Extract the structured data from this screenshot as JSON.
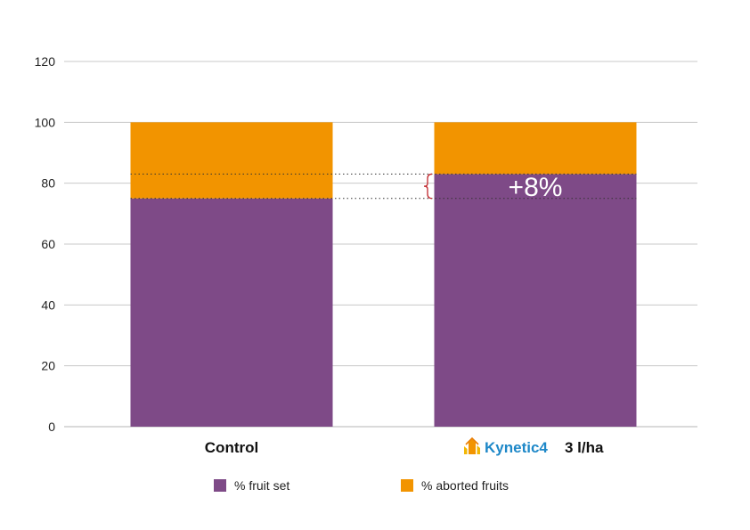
{
  "chart_data": {
    "type": "bar",
    "stacked": true,
    "categories": [
      "Control",
      "3 l/ha"
    ],
    "category_brand": [
      "",
      "Kynetic4"
    ],
    "series": [
      {
        "name": "% fruit set",
        "values": [
          75,
          83
        ],
        "color": "#7e4a87"
      },
      {
        "name": "% aborted fruits",
        "values": [
          25,
          17
        ],
        "color": "#f29400"
      }
    ],
    "ylim": [
      0,
      120
    ],
    "yticks": [
      0,
      20,
      40,
      60,
      80,
      100,
      120
    ],
    "grid": true,
    "legend_position": "bottom",
    "annotation": {
      "text": "+8%",
      "from": 75,
      "to": 83
    },
    "brace_color": "#c0272d"
  }
}
